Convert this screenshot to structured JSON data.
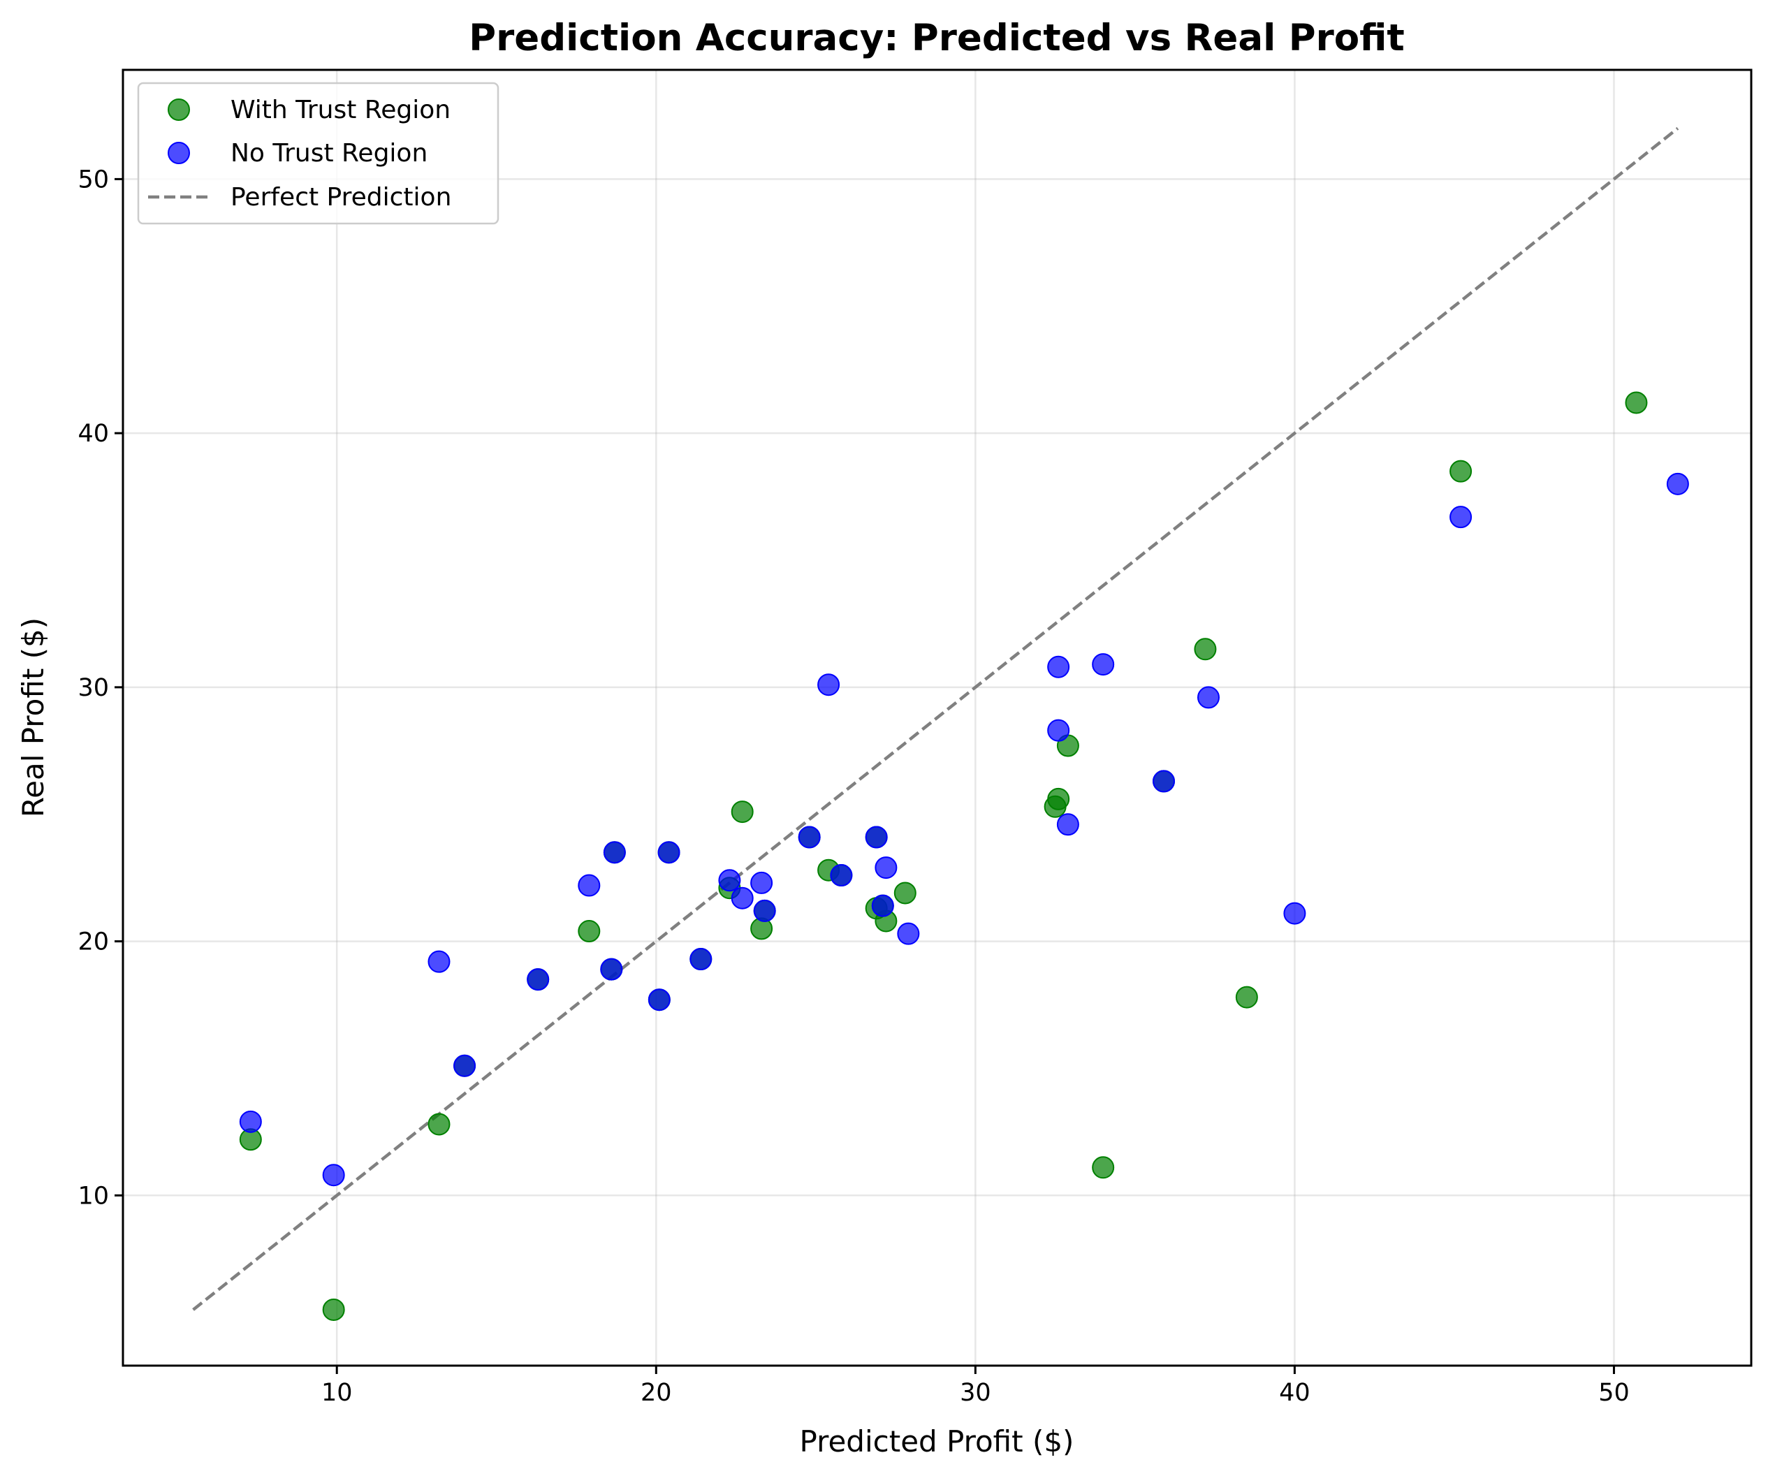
{
  "chart_data": {
    "type": "scatter",
    "title": "Prediction Accuracy: Predicted vs Real Profit",
    "xlabel": "Predicted Profit ($)",
    "ylabel": "Real Profit ($)",
    "xlim": [
      3.3,
      54.3
    ],
    "ylim": [
      3.3,
      54.3
    ],
    "xticks": [
      10,
      20,
      30,
      40,
      50
    ],
    "yticks": [
      10,
      20,
      30,
      40,
      50
    ],
    "grid": true,
    "legend_position": "upper-left",
    "series": [
      {
        "name": "With Trust Region",
        "color": "#008000",
        "x": [
          7.3,
          9.9,
          13.2,
          14.0,
          16.3,
          17.9,
          18.6,
          18.7,
          20.1,
          20.4,
          21.4,
          22.3,
          22.7,
          23.3,
          23.4,
          24.8,
          25.4,
          25.8,
          26.9,
          26.9,
          27.1,
          27.2,
          27.8,
          32.5,
          32.6,
          32.9,
          34.0,
          35.9,
          37.2,
          38.5,
          45.2,
          50.7
        ],
        "y": [
          12.2,
          5.5,
          12.8,
          15.1,
          18.5,
          20.4,
          18.9,
          23.5,
          17.7,
          23.5,
          19.3,
          22.1,
          25.1,
          20.5,
          21.2,
          24.1,
          22.8,
          22.6,
          24.1,
          21.3,
          21.4,
          20.8,
          21.9,
          25.3,
          25.6,
          27.7,
          11.1,
          26.3,
          31.5,
          17.8,
          38.5,
          41.2
        ]
      },
      {
        "name": "No Trust Region",
        "color": "#0000ff",
        "x": [
          7.3,
          9.9,
          13.2,
          14.0,
          16.3,
          17.9,
          18.6,
          18.7,
          20.1,
          20.4,
          21.4,
          22.3,
          22.7,
          23.3,
          23.4,
          24.8,
          25.4,
          25.8,
          26.9,
          27.1,
          27.2,
          27.9,
          32.6,
          32.6,
          32.9,
          34.0,
          35.9,
          37.3,
          40.0,
          45.2,
          52.0
        ],
        "y": [
          12.9,
          10.8,
          19.2,
          15.1,
          18.5,
          22.2,
          18.9,
          23.5,
          17.7,
          23.5,
          19.3,
          22.4,
          21.7,
          22.3,
          21.2,
          24.1,
          30.1,
          22.6,
          24.1,
          21.4,
          22.9,
          20.3,
          30.8,
          28.3,
          24.6,
          30.9,
          26.3,
          29.6,
          21.1,
          36.7,
          38.0
        ]
      },
      {
        "name": "Perfect Prediction",
        "color": "#808080",
        "style": "dashed",
        "x": [
          5.5,
          52.0
        ],
        "y": [
          5.5,
          52.0
        ]
      }
    ]
  }
}
